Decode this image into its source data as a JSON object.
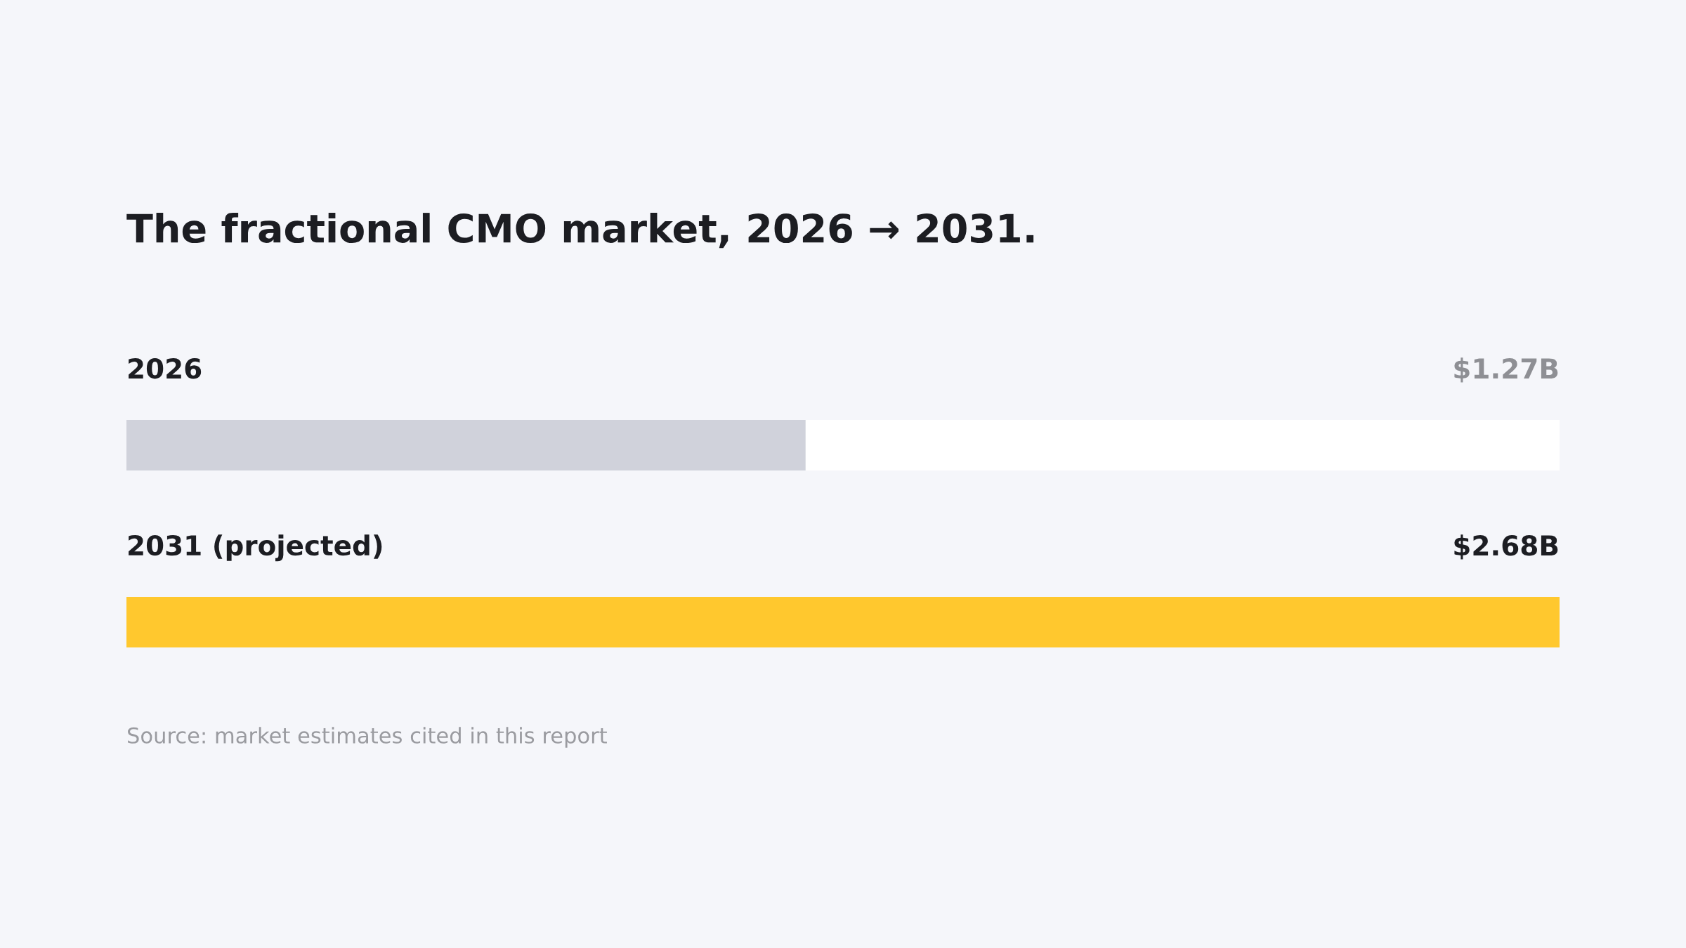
{
  "chart_data": {
    "type": "bar",
    "orientation": "horizontal",
    "title": "The fractional CMO market, 2026 → 2031.",
    "categories": [
      "2026",
      "2031 (projected)"
    ],
    "series": [
      {
        "values": [
          1.27,
          2.68
        ],
        "colors": [
          "#d0d2db",
          "#ffc82e"
        ],
        "value_labels": [
          "$1.27B",
          "$2.68B"
        ]
      }
    ],
    "annotations": [
      "Source: market estimates cited in this report"
    ]
  }
}
